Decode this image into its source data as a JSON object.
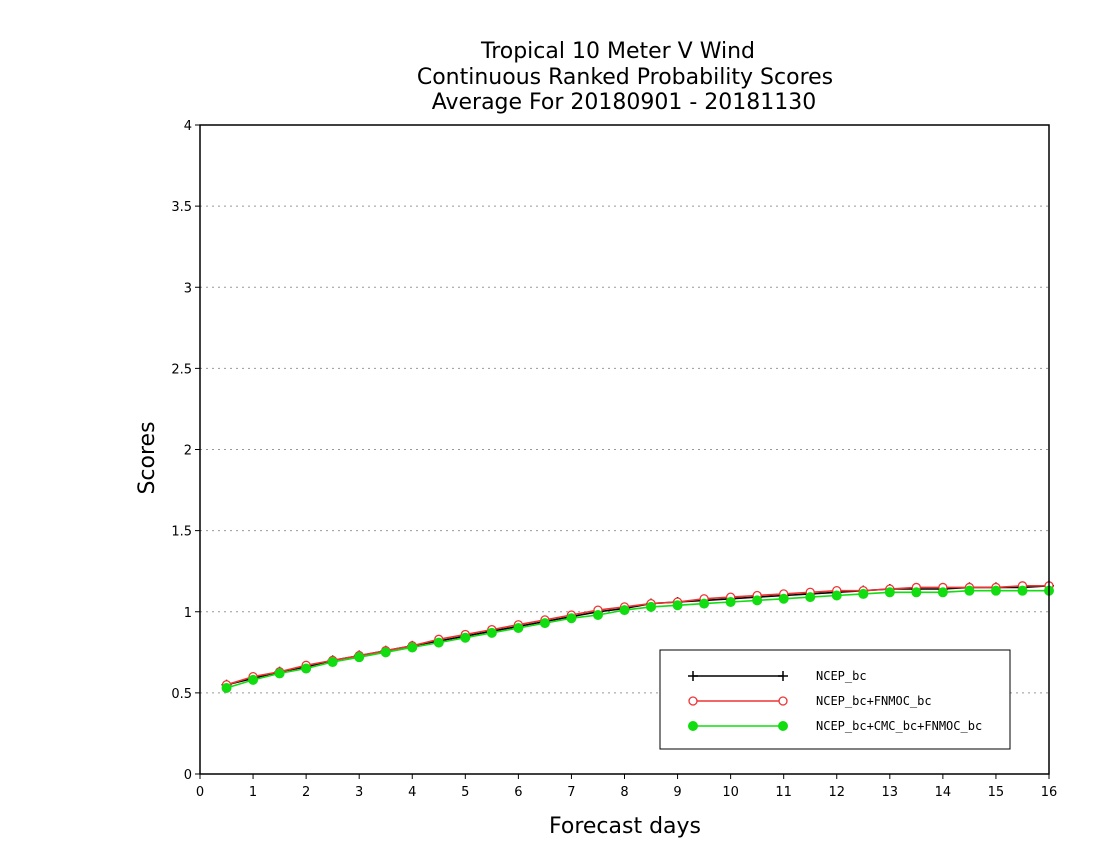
{
  "chart_data": {
    "type": "line",
    "title": [
      "Tropical 10 Meter V Wind",
      "Continuous Ranked Probability Scores",
      "Average For 20180901 - 20181130"
    ],
    "xlabel": "Forecast days",
    "ylabel": "Scores",
    "xlim": [
      0,
      16
    ],
    "ylim": [
      0,
      4
    ],
    "xticks": [
      0,
      1,
      2,
      3,
      4,
      5,
      6,
      7,
      8,
      9,
      10,
      11,
      12,
      13,
      14,
      15,
      16
    ],
    "yticks": [
      0,
      0.5,
      1,
      1.5,
      2,
      2.5,
      3,
      3.5,
      4
    ],
    "ytick_labels": [
      "0",
      "0.5",
      "1",
      "1.5",
      "2",
      "2.5",
      "3",
      "3.5",
      "4"
    ],
    "grid": "horizontal dotted",
    "legend_position": "bottom-right",
    "x": [
      0.5,
      1,
      1.5,
      2,
      2.5,
      3,
      3.5,
      4,
      4.5,
      5,
      5.5,
      6,
      6.5,
      7,
      7.5,
      8,
      8.5,
      9,
      9.5,
      10,
      10.5,
      11,
      11.5,
      12,
      12.5,
      13,
      13.5,
      14,
      14.5,
      15,
      15.5,
      16
    ],
    "series": [
      {
        "name": "NCEP_bc",
        "color": "#000000",
        "marker": "plus",
        "values": [
          0.55,
          0.59,
          0.63,
          0.66,
          0.7,
          0.73,
          0.76,
          0.79,
          0.82,
          0.85,
          0.88,
          0.91,
          0.94,
          0.97,
          1.0,
          1.02,
          1.05,
          1.06,
          1.07,
          1.08,
          1.09,
          1.1,
          1.11,
          1.12,
          1.13,
          1.14,
          1.14,
          1.14,
          1.15,
          1.15,
          1.15,
          1.16
        ]
      },
      {
        "name": "NCEP_bc+FNMOC_bc",
        "color": "#ee3333",
        "marker": "open-circle",
        "values": [
          0.55,
          0.6,
          0.63,
          0.67,
          0.7,
          0.73,
          0.76,
          0.79,
          0.83,
          0.86,
          0.89,
          0.92,
          0.95,
          0.98,
          1.01,
          1.03,
          1.05,
          1.06,
          1.08,
          1.09,
          1.1,
          1.11,
          1.12,
          1.13,
          1.13,
          1.14,
          1.15,
          1.15,
          1.15,
          1.15,
          1.16,
          1.16
        ]
      },
      {
        "name": "NCEP_bc+CMC_bc+FNMOC_bc",
        "color": "#11dd11",
        "marker": "filled-circle",
        "values": [
          0.53,
          0.58,
          0.62,
          0.65,
          0.69,
          0.72,
          0.75,
          0.78,
          0.81,
          0.84,
          0.87,
          0.9,
          0.93,
          0.96,
          0.98,
          1.01,
          1.03,
          1.04,
          1.05,
          1.06,
          1.07,
          1.08,
          1.09,
          1.1,
          1.11,
          1.12,
          1.12,
          1.12,
          1.13,
          1.13,
          1.13,
          1.13
        ]
      }
    ]
  }
}
